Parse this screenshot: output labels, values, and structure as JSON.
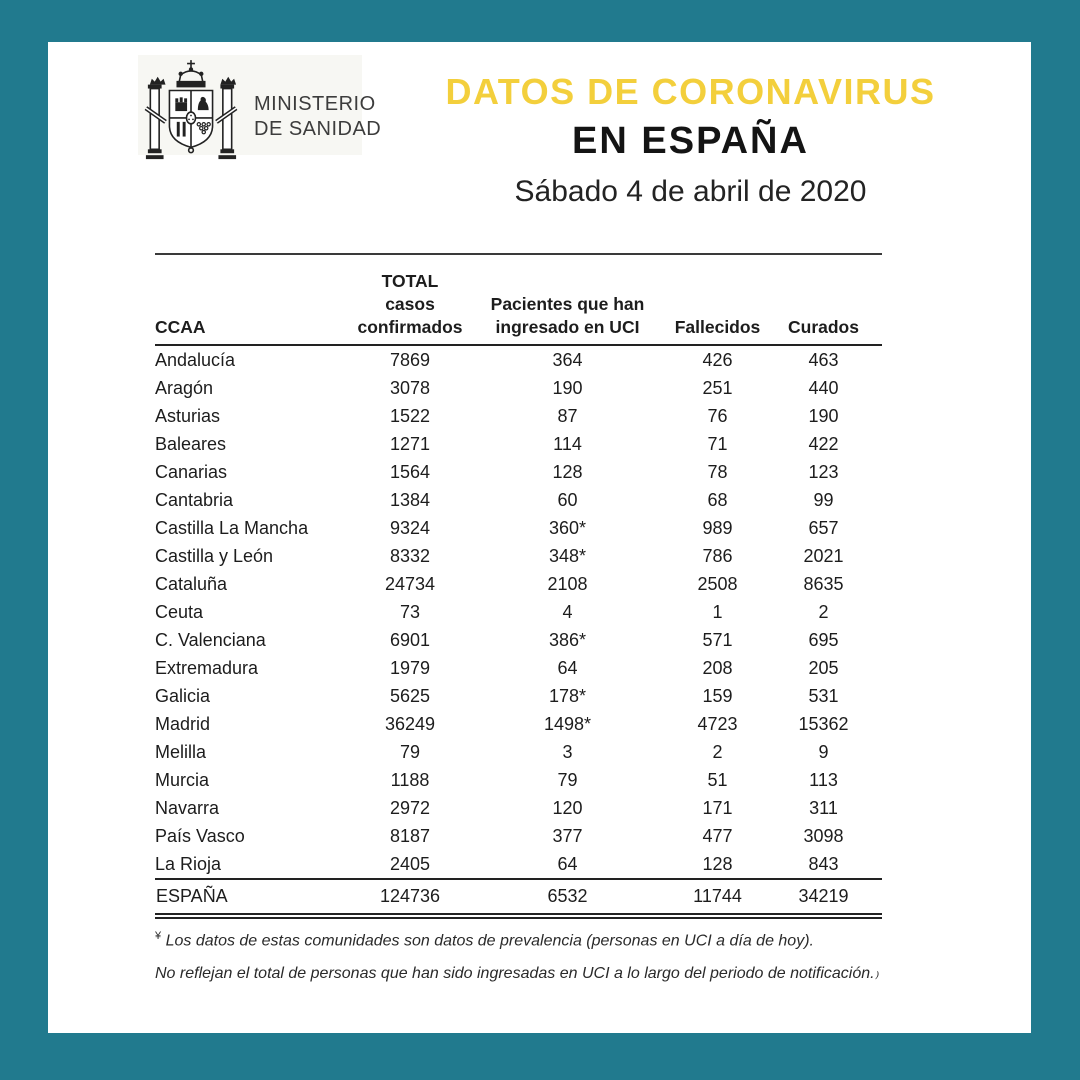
{
  "page": {
    "background_color": "#217A8E",
    "card_color": "#FFFFFF",
    "accent_yellow": "#F3CF3C"
  },
  "header": {
    "ministry_line1": "MINISTERIO",
    "ministry_line2": "DE SANIDAD",
    "logo_icon": "spain-coat-of-arms",
    "title": "DATOS DE CORONAVIRUS",
    "subtitle": "EN ESPAÑA",
    "date": "Sábado 4 de abril de 2020"
  },
  "table": {
    "headers": {
      "ccaa": "CCAA",
      "total_line1": "TOTAL casos",
      "total_line2": "confirmados",
      "uci_line1": "Pacientes que han",
      "uci_line2": "ingresado en UCI",
      "fallecidos": "Fallecidos",
      "curados": "Curados"
    }
  },
  "chart_data": {
    "type": "table",
    "columns": [
      "CCAA",
      "TOTAL casos confirmados",
      "Pacientes que han ingresado en UCI",
      "Fallecidos",
      "Curados"
    ],
    "column_keys": [
      "ccaa",
      "total-confirmados",
      "uci",
      "fallecidos",
      "curados"
    ],
    "rows": [
      [
        "Andalucía",
        "7869",
        "364",
        "426",
        "463"
      ],
      [
        "Aragón",
        "3078",
        "190",
        "251",
        "440"
      ],
      [
        "Asturias",
        "1522",
        "87",
        "76",
        "190"
      ],
      [
        "Baleares",
        "1271",
        "114",
        "71",
        "422"
      ],
      [
        "Canarias",
        "1564",
        "128",
        "78",
        "123"
      ],
      [
        "Cantabria",
        "1384",
        "60",
        "68",
        "99"
      ],
      [
        "Castilla La Mancha",
        "9324",
        "360*",
        "989",
        "657"
      ],
      [
        "Castilla y León",
        "8332",
        "348*",
        "786",
        "2021"
      ],
      [
        "Cataluña",
        "24734",
        "2108",
        "2508",
        "8635"
      ],
      [
        "Ceuta",
        "73",
        "4",
        "1",
        "2"
      ],
      [
        "C. Valenciana",
        "6901",
        "386*",
        "571",
        "695"
      ],
      [
        "Extremadura",
        "1979",
        "64",
        "208",
        "205"
      ],
      [
        "Galicia",
        "5625",
        "178*",
        "159",
        "531"
      ],
      [
        "Madrid",
        "36249",
        "1498*",
        "4723",
        "15362"
      ],
      [
        "Melilla",
        "79",
        "3",
        "2",
        "9"
      ],
      [
        "Murcia",
        "1188",
        "79",
        "51",
        "113"
      ],
      [
        "Navarra",
        "2972",
        "120",
        "171",
        "311"
      ],
      [
        "País Vasco",
        "8187",
        "377",
        "477",
        "3098"
      ],
      [
        "La Rioja",
        "2405",
        "64",
        "128",
        "843"
      ]
    ],
    "total_row": [
      "ESPAÑA",
      "124736",
      "6532",
      "11744",
      "34219"
    ]
  },
  "footnote": {
    "marker": "¥",
    "line1": "Los datos de estas comunidades son datos de prevalencia (personas en UCI a día de hoy).",
    "line2": "No reflejan el total de personas que han sido ingresadas en UCI a lo largo del periodo de notificación.₎"
  }
}
